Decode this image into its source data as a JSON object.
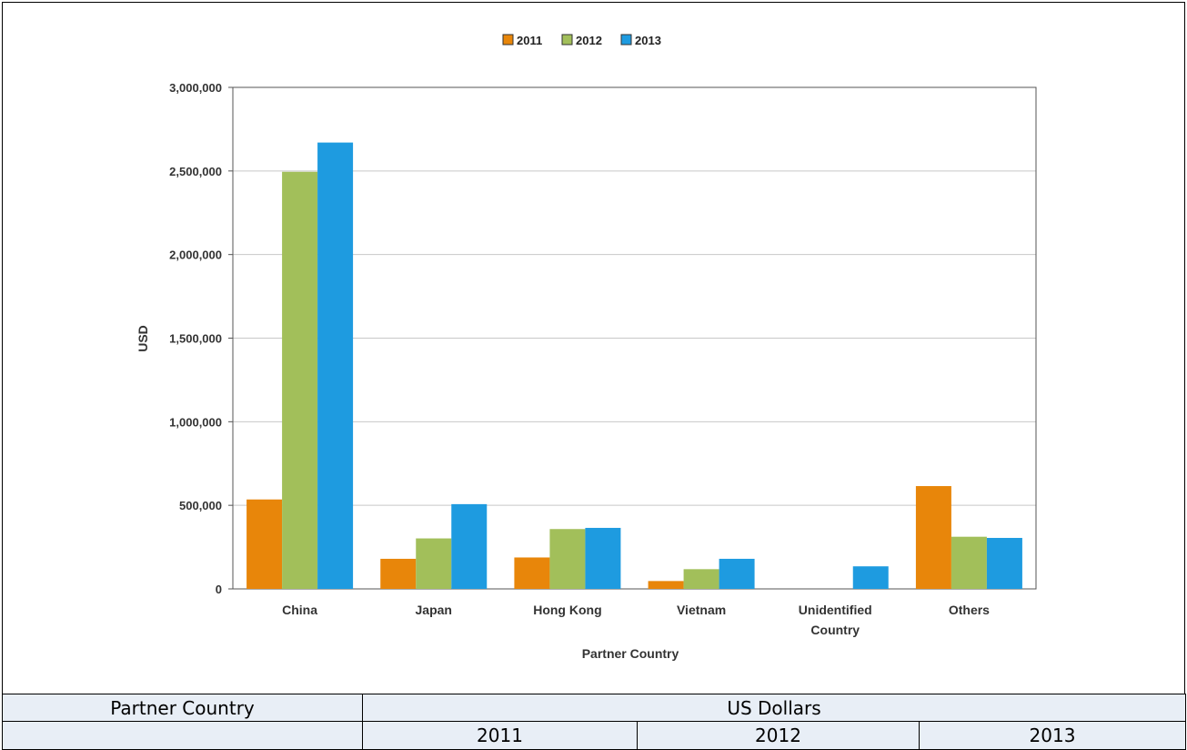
{
  "chart_data": {
    "type": "bar",
    "categories": [
      "China",
      "Japan",
      "Hong Kong",
      "Vietnam",
      "Unidentified Country",
      "Others"
    ],
    "series": [
      {
        "name": "2011",
        "color": "#e8860a",
        "values": [
          535000,
          180000,
          188000,
          47000,
          0,
          615000
        ]
      },
      {
        "name": "2012",
        "color": "#a2bf5a",
        "values": [
          2495000,
          302000,
          358000,
          118000,
          0,
          312000
        ]
      },
      {
        "name": "2013",
        "color": "#1e9be0",
        "values": [
          2670000,
          507000,
          365000,
          180000,
          135000,
          305000
        ]
      }
    ],
    "xlabel": "Partner Country",
    "ylabel": "USD",
    "ylim": [
      0,
      3000000
    ],
    "yticks": [
      "0",
      "500,000",
      "1,000,000",
      "1,500,000",
      "2,000,000",
      "2,500,000",
      "3,000,000"
    ],
    "grid": true,
    "legend": "top-center"
  },
  "table": {
    "header_left": "Partner Country",
    "header_right": "US Dollars",
    "years": [
      "2011",
      "2012",
      "2013"
    ]
  }
}
